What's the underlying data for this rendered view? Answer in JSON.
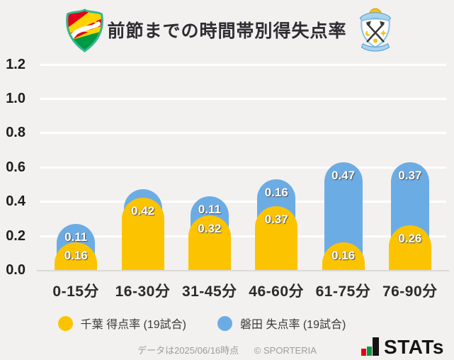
{
  "header": {
    "title": "前節までの時間帯別得失点率",
    "left_logo": "ジェフユナイテッド千葉エンブレム",
    "right_logo": "ジュビロ磐田エンブレム"
  },
  "chart_data": {
    "type": "bar",
    "stacked": true,
    "title": "前節までの時間帯別得失点率",
    "categories": [
      "0-15分",
      "16-30分",
      "31-45分",
      "46-60分",
      "61-75分",
      "76-90分"
    ],
    "series": [
      {
        "name": "千葉 得点率 (19試合)",
        "color": "#fcc400",
        "values": [
          0.16,
          0.42,
          0.32,
          0.37,
          0.16,
          0.26
        ],
        "labels": [
          "0.16",
          "0.42",
          "0.32",
          "0.37",
          "0.16",
          "0.26"
        ]
      },
      {
        "name": "磐田 失点率 (19試合)",
        "color": "#6cace4",
        "values": [
          0.11,
          0.05,
          0.11,
          0.16,
          0.47,
          0.37
        ],
        "labels": [
          "0.11",
          "",
          "0.11",
          "0.16",
          "0.47",
          "0.37"
        ]
      }
    ],
    "xlabel": "",
    "ylabel": "",
    "ylim": [
      0,
      1.2
    ],
    "ytick_labels": [
      "1.2",
      "1.0",
      "0.8",
      "0.6",
      "0.4",
      "0.2",
      "0.0"
    ],
    "grid": true,
    "legend_position": "bottom"
  },
  "legend": {
    "items": [
      {
        "label": "千葉 得点率 (19試合)",
        "color": "#fcc400"
      },
      {
        "label": "磐田 失点率 (19試合)",
        "color": "#6cace4"
      }
    ]
  },
  "footer": {
    "data_note": "データは2025/06/16時点",
    "copyright": "© SPORTERIA",
    "brand": "STATs"
  },
  "colors": {
    "background": "#f2f1ef",
    "gridline": "#ffffff",
    "baseline": "#dad9d6",
    "chiba_yellow": "#fcc400",
    "iwata_blue": "#6cace4",
    "stats_red": "#e60012",
    "stats_green": "#009944",
    "stats_dark": "#141414"
  }
}
